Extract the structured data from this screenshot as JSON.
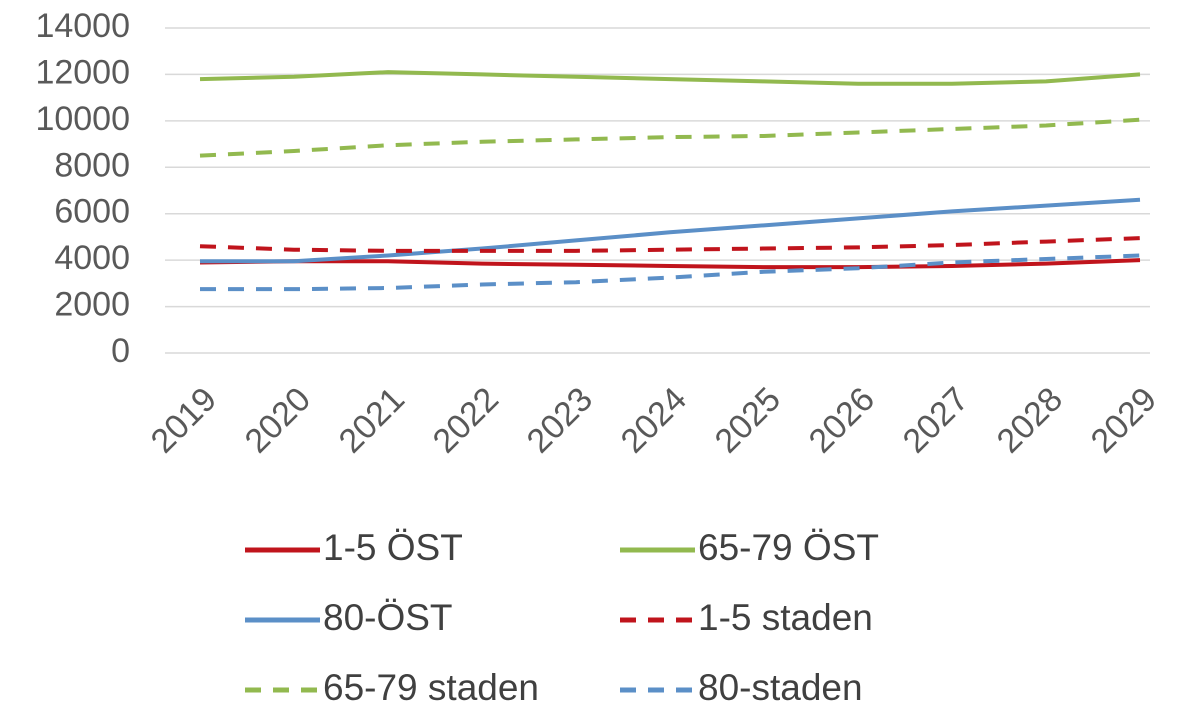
{
  "chart_data": {
    "type": "line",
    "categories": [
      "2019",
      "2020",
      "2021",
      "2022",
      "2023",
      "2024",
      "2025",
      "2026",
      "2027",
      "2028",
      "2029"
    ],
    "series": [
      {
        "name": "1-5 ÖST",
        "color": "#c0141c",
        "dash": false,
        "values": [
          3900,
          3950,
          3950,
          3850,
          3800,
          3750,
          3700,
          3700,
          3750,
          3850,
          4000
        ]
      },
      {
        "name": "65-79 ÖST",
        "color": "#92b94f",
        "dash": false,
        "values": [
          11800,
          11900,
          12100,
          12000,
          11900,
          11800,
          11700,
          11600,
          11600,
          11700,
          12000
        ]
      },
      {
        "name": "80-ÖST",
        "color": "#5b8fc7",
        "dash": false,
        "values": [
          3950,
          3950,
          4200,
          4500,
          4850,
          5200,
          5500,
          5800,
          6100,
          6350,
          6600
        ]
      },
      {
        "name": "1-5 staden",
        "color": "#c0141c",
        "dash": true,
        "values": [
          4600,
          4450,
          4400,
          4400,
          4400,
          4450,
          4500,
          4550,
          4650,
          4800,
          4950
        ]
      },
      {
        "name": "65-79 staden",
        "color": "#92b94f",
        "dash": true,
        "values": [
          8500,
          8700,
          8950,
          9100,
          9200,
          9300,
          9350,
          9500,
          9650,
          9800,
          10050
        ]
      },
      {
        "name": "80-staden",
        "color": "#5b8fc7",
        "dash": true,
        "values": [
          2750,
          2750,
          2800,
          2950,
          3050,
          3250,
          3500,
          3650,
          3900,
          4050,
          4200
        ]
      }
    ],
    "ylim": [
      0,
      14000
    ],
    "yticks": [
      0,
      2000,
      4000,
      6000,
      8000,
      10000,
      12000,
      14000
    ],
    "grid": true
  }
}
